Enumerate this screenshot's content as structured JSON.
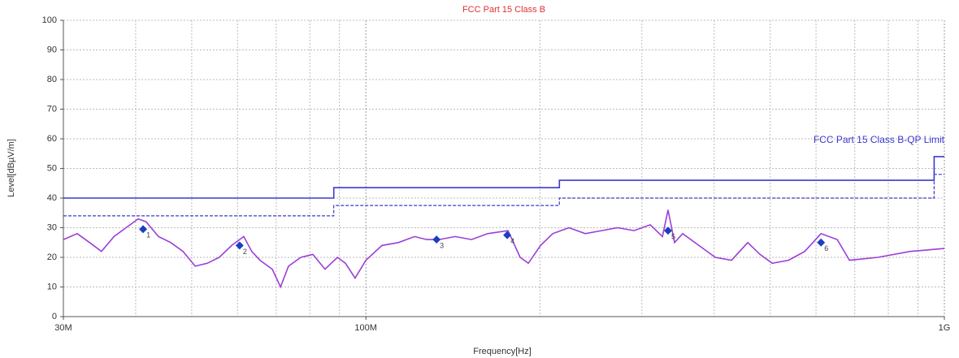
{
  "chart_data": {
    "type": "line",
    "title": "FCC Part 15 Class B",
    "title_color": "#e03030",
    "xlabel": "Frequency[Hz]",
    "ylabel": "Level[dBµV/m]",
    "xscale": "log",
    "xlim": [
      30000000,
      1000000000
    ],
    "ylim": [
      0,
      100
    ],
    "xticks": [
      {
        "value": 30000000,
        "label": "30M"
      },
      {
        "value": 100000000,
        "label": "100M"
      },
      {
        "value": 1000000000,
        "label": "1G"
      }
    ],
    "xgrid_minor": [
      40000000,
      50000000,
      60000000,
      70000000,
      80000000,
      90000000,
      200000000,
      300000000,
      400000000,
      500000000,
      600000000,
      700000000,
      800000000,
      900000000
    ],
    "yticks": [
      0,
      10,
      20,
      30,
      40,
      50,
      60,
      70,
      80,
      90,
      100
    ],
    "grid": true,
    "series": [
      {
        "name": "FCC Part 15 Class B-QP Limit",
        "color": "#3a3ad0",
        "dash": false,
        "x": [
          30000000,
          88000000,
          88000000,
          216000000,
          216000000,
          960000000,
          960000000,
          1000000000
        ],
        "values": [
          40,
          40,
          43.5,
          43.5,
          46,
          46,
          54,
          54
        ]
      },
      {
        "color": "#3a3ad0",
        "dash": true,
        "x": [
          30000000,
          88000000,
          88000000,
          216000000,
          216000000,
          960000000,
          960000000,
          1000000000
        ],
        "values": [
          34,
          34,
          37.5,
          37.5,
          40,
          40,
          48,
          48
        ]
      },
      {
        "color": "#9b3fd6",
        "dash": false,
        "x": [
          30000000,
          31700000,
          33300000,
          34900000,
          36700000,
          38500000,
          40400000,
          41700000,
          43800000,
          46000000,
          48300000,
          50700000,
          53200000,
          55800000,
          58600000,
          61500000,
          63500000,
          65600000,
          68900000,
          71200000,
          73500000,
          77200000,
          81000000,
          85000000,
          89300000,
          92200000,
          95800000,
          100000000,
          106600000,
          113800000,
          121400000,
          127400000,
          133800000,
          142700000,
          152300000,
          162400000,
          176100000,
          184800000,
          190900000,
          200400000,
          210400000,
          224400000,
          239400000,
          255400000,
          272500000,
          290700000,
          310200000,
          325600000,
          332900000,
          341700000,
          352900000,
          376500000,
          401700000,
          428600000,
          457300000,
          480100000,
          504000000,
          537700000,
          573600000,
          612000000,
          652900000,
          685300000,
          767500000,
          873300000,
          1000000000
        ],
        "values": [
          26,
          28,
          25,
          22,
          27,
          30,
          33,
          32,
          27,
          25,
          22,
          17,
          18,
          20,
          24,
          27,
          22,
          19,
          16,
          10,
          17,
          20,
          21,
          16,
          20,
          18,
          13,
          19,
          24,
          25,
          27,
          26,
          26,
          27,
          26,
          28,
          29,
          20,
          18,
          24,
          28,
          30,
          28,
          29,
          30,
          29,
          31,
          27,
          36,
          25,
          28,
          24,
          20,
          19,
          25,
          21,
          18,
          19,
          22,
          28,
          26,
          19,
          20,
          22,
          23
        ]
      }
    ],
    "markers": {
      "color": "#1a3fc0",
      "x": [
        41200000,
        60500000,
        132500000,
        175500000,
        332900000,
        612000000
      ],
      "values": [
        29.5,
        24,
        26,
        27.5,
        29,
        25
      ],
      "labels": [
        "1",
        "2",
        "3",
        "4",
        "5",
        "6"
      ]
    }
  }
}
